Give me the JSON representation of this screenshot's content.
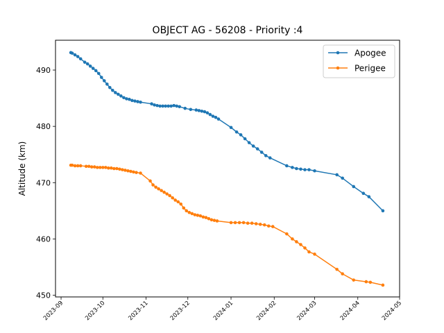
{
  "chart_data": {
    "type": "line",
    "title": "OBJECT AG - 56208 - Priority :4",
    "xlabel": "",
    "ylabel": "Altitude (km)",
    "x_ticks": [
      "2023-09",
      "2023-10",
      "2023-11",
      "2023-12",
      "2024-01",
      "2024-02",
      "2024-03",
      "2024-04",
      "2024-05"
    ],
    "y_ticks": [
      450,
      460,
      470,
      480,
      490
    ],
    "xlim": [
      "2023-08-28",
      "2024-05-01"
    ],
    "ylim": [
      449.7,
      495.3
    ],
    "grid": false,
    "legend_position": "top-right",
    "series": [
      {
        "name": "Apogee",
        "color": "#1f77b4",
        "x": [
          "2023-09-08",
          "2023-09-09",
          "2023-09-11",
          "2023-09-13",
          "2023-09-15",
          "2023-09-18",
          "2023-09-20",
          "2023-09-22",
          "2023-09-24",
          "2023-09-26",
          "2023-09-28",
          "2023-09-30",
          "2023-10-02",
          "2023-10-04",
          "2023-10-06",
          "2023-10-08",
          "2023-10-10",
          "2023-10-12",
          "2023-10-14",
          "2023-10-16",
          "2023-10-18",
          "2023-10-20",
          "2023-10-22",
          "2023-10-24",
          "2023-10-26",
          "2023-10-28",
          "2023-11-05",
          "2023-11-07",
          "2023-11-09",
          "2023-11-11",
          "2023-11-13",
          "2023-11-15",
          "2023-11-17",
          "2023-11-19",
          "2023-11-21",
          "2023-11-23",
          "2023-11-25",
          "2023-11-29",
          "2023-12-03",
          "2023-12-07",
          "2023-12-09",
          "2023-12-11",
          "2023-12-13",
          "2023-12-15",
          "2023-12-17",
          "2023-12-19",
          "2023-12-21",
          "2023-12-23",
          "2024-01-01",
          "2024-01-05",
          "2024-01-08",
          "2024-01-11",
          "2024-01-14",
          "2024-01-17",
          "2024-01-20",
          "2024-01-23",
          "2024-01-26",
          "2024-01-29",
          "2024-02-10",
          "2024-02-14",
          "2024-02-17",
          "2024-02-20",
          "2024-02-23",
          "2024-02-26",
          "2024-03-01",
          "2024-03-17",
          "2024-03-21",
          "2024-03-29",
          "2024-04-05",
          "2024-04-09",
          "2024-04-19"
        ],
        "values": [
          493.1,
          493.0,
          492.7,
          492.4,
          492.0,
          491.4,
          491.1,
          490.7,
          490.3,
          489.9,
          489.4,
          488.7,
          488.1,
          487.5,
          486.9,
          486.4,
          486.0,
          485.7,
          485.4,
          485.1,
          484.9,
          484.8,
          484.6,
          484.5,
          484.4,
          484.3,
          484.0,
          483.8,
          483.7,
          483.6,
          483.6,
          483.6,
          483.6,
          483.6,
          483.7,
          483.6,
          483.5,
          483.2,
          483.0,
          482.9,
          482.8,
          482.7,
          482.6,
          482.4,
          482.1,
          481.8,
          481.6,
          481.3,
          479.8,
          479.0,
          478.5,
          477.8,
          477.1,
          476.5,
          476.0,
          475.4,
          474.8,
          474.4,
          473.0,
          472.7,
          472.5,
          472.4,
          472.3,
          472.3,
          472.1,
          471.4,
          470.8,
          469.3,
          468.1,
          467.5,
          465.0
        ]
      },
      {
        "name": "Perigee",
        "color": "#ff7f0e",
        "x": [
          "2023-09-08",
          "2023-09-09",
          "2023-09-11",
          "2023-09-13",
          "2023-09-15",
          "2023-09-19",
          "2023-09-21",
          "2023-09-23",
          "2023-09-25",
          "2023-09-27",
          "2023-09-29",
          "2023-10-01",
          "2023-10-03",
          "2023-10-05",
          "2023-10-07",
          "2023-10-09",
          "2023-10-11",
          "2023-10-13",
          "2023-10-15",
          "2023-10-17",
          "2023-10-19",
          "2023-10-21",
          "2023-10-23",
          "2023-10-25",
          "2023-10-28",
          "2023-11-04",
          "2023-11-06",
          "2023-11-08",
          "2023-11-10",
          "2023-11-12",
          "2023-11-14",
          "2023-11-16",
          "2023-11-18",
          "2023-11-20",
          "2023-11-22",
          "2023-11-24",
          "2023-11-26",
          "2023-11-28",
          "2023-11-30",
          "2023-12-02",
          "2023-12-04",
          "2023-12-06",
          "2023-12-08",
          "2023-12-10",
          "2023-12-12",
          "2023-12-14",
          "2023-12-16",
          "2023-12-18",
          "2023-12-20",
          "2023-12-22",
          "2024-01-01",
          "2024-01-04",
          "2024-01-07",
          "2024-01-10",
          "2024-01-13",
          "2024-01-16",
          "2024-01-19",
          "2024-01-22",
          "2024-01-25",
          "2024-01-28",
          "2024-01-31",
          "2024-02-10",
          "2024-02-14",
          "2024-02-17",
          "2024-02-20",
          "2024-02-23",
          "2024-02-26",
          "2024-03-01",
          "2024-03-17",
          "2024-03-21",
          "2024-03-29",
          "2024-04-07",
          "2024-04-10",
          "2024-04-19"
        ],
        "values": [
          473.1,
          473.1,
          473.0,
          473.0,
          473.0,
          472.9,
          472.9,
          472.8,
          472.8,
          472.7,
          472.7,
          472.7,
          472.7,
          472.6,
          472.6,
          472.5,
          472.5,
          472.4,
          472.3,
          472.2,
          472.1,
          472.0,
          471.9,
          471.8,
          471.7,
          470.3,
          469.6,
          469.2,
          468.9,
          468.6,
          468.3,
          468.0,
          467.7,
          467.3,
          466.9,
          466.6,
          466.2,
          465.5,
          465.0,
          464.7,
          464.5,
          464.3,
          464.2,
          464.1,
          463.9,
          463.8,
          463.6,
          463.4,
          463.3,
          463.2,
          462.9,
          462.9,
          462.9,
          462.9,
          462.8,
          462.8,
          462.7,
          462.6,
          462.5,
          462.3,
          462.2,
          460.9,
          460.0,
          459.5,
          459.0,
          458.4,
          457.7,
          457.3,
          454.6,
          453.8,
          452.7,
          452.4,
          452.3,
          451.8
        ]
      }
    ]
  }
}
